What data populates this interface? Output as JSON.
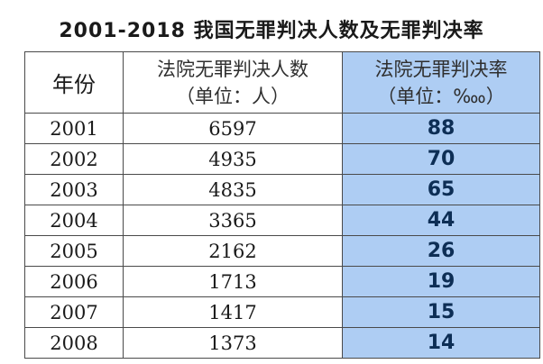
{
  "title": "2001-2018 我国无罪判决人数及无罪判决率",
  "headers": {
    "year": "年份",
    "count_line1": "法院无罪判决人数",
    "count_line2": "（单位：人）",
    "rate_line1": "法院无罪判决率",
    "rate_line2": "（单位：‱）"
  },
  "colors": {
    "rate_column_bg": "#aecdf3",
    "rate_text": "#0d2e55",
    "border": "#4a4a4a"
  },
  "rows": [
    {
      "year": "2001",
      "count": "6597",
      "rate": "88"
    },
    {
      "year": "2002",
      "count": "4935",
      "rate": "70"
    },
    {
      "year": "2003",
      "count": "4835",
      "rate": "65"
    },
    {
      "year": "2004",
      "count": "3365",
      "rate": "44"
    },
    {
      "year": "2005",
      "count": "2162",
      "rate": "26"
    },
    {
      "year": "2006",
      "count": "1713",
      "rate": "19"
    },
    {
      "year": "2007",
      "count": "1417",
      "rate": "15"
    },
    {
      "year": "2008",
      "count": "1373",
      "rate": "14"
    }
  ]
}
